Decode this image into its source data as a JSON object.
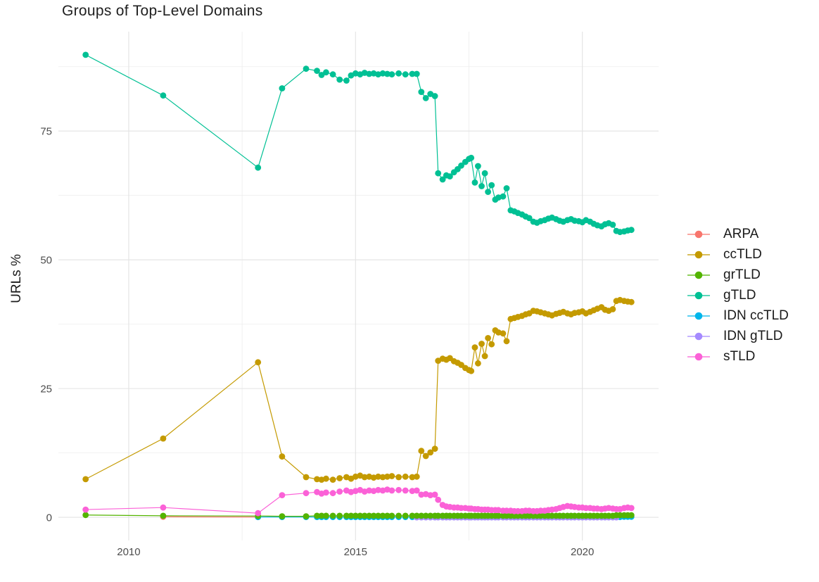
{
  "title": "Groups of Top-Level Domains",
  "chart_data": {
    "type": "line",
    "title": "Groups of Top-Level Domains",
    "xlabel": "",
    "ylabel": "URLs %",
    "grid": true,
    "legend_position": "right",
    "xlim": [
      2008.45,
      2021.68
    ],
    "ylim": [
      -4.5,
      94.3
    ],
    "x_ticks": {
      "major": [
        2010,
        2015,
        2020
      ],
      "minor": [
        2012.5,
        2017.5
      ],
      "labels": [
        "2010",
        "2015",
        "2020"
      ]
    },
    "y_ticks": {
      "major": [
        0,
        25,
        50,
        75
      ],
      "minor": [
        12.5,
        37.5,
        62.5,
        87.5
      ],
      "labels": [
        "0",
        "25",
        "50",
        "75"
      ]
    },
    "x": [
      2009.05,
      2010.76,
      2012.85,
      2013.38,
      2013.91,
      2014.15,
      2014.25,
      2014.35,
      2014.5,
      2014.65,
      2014.8,
      2014.9,
      2015.0,
      2015.1,
      2015.2,
      2015.3,
      2015.4,
      2015.5,
      2015.6,
      2015.7,
      2015.8,
      2015.95,
      2016.1,
      2016.25,
      2016.35,
      2016.45,
      2016.55,
      2016.65,
      2016.75,
      2016.82,
      2016.92,
      2017.0,
      2017.08,
      2017.17,
      2017.25,
      2017.33,
      2017.42,
      2017.5,
      2017.55,
      2017.63,
      2017.7,
      2017.78,
      2017.85,
      2017.92,
      2018.0,
      2018.08,
      2018.15,
      2018.25,
      2018.33,
      2018.42,
      2018.5,
      2018.58,
      2018.67,
      2018.75,
      2018.83,
      2018.92,
      2019.0,
      2019.08,
      2019.17,
      2019.25,
      2019.33,
      2019.42,
      2019.5,
      2019.58,
      2019.67,
      2019.75,
      2019.83,
      2019.92,
      2020.0,
      2020.08,
      2020.17,
      2020.25,
      2020.33,
      2020.42,
      2020.5,
      2020.58,
      2020.67,
      2020.75,
      2020.83,
      2020.92,
      2021.0,
      2021.08
    ],
    "draw_order": [
      "gTLD",
      "ccTLD",
      "ARPA",
      "IDN ccTLD",
      "IDN gTLD",
      "grTLD",
      "sTLD"
    ],
    "series": [
      {
        "name": "ARPA",
        "color": "#F8766D",
        "start_index": 1,
        "values": [
          0.1,
          0.05
        ]
      },
      {
        "name": "ccTLD",
        "color": "#C49A00",
        "start_index": 0,
        "values": [
          7.4,
          15.3,
          30.1,
          11.8,
          7.8,
          7.4,
          7.3,
          7.5,
          7.3,
          7.6,
          7.8,
          7.5,
          7.9,
          8.1,
          7.8,
          7.9,
          7.7,
          7.9,
          7.8,
          7.9,
          8.0,
          7.8,
          7.9,
          7.8,
          7.9,
          12.9,
          11.9,
          12.6,
          13.3,
          30.4,
          30.8,
          30.6,
          30.9,
          30.3,
          30.0,
          29.6,
          29.0,
          28.6,
          28.4,
          33.0,
          29.9,
          33.7,
          31.3,
          34.8,
          33.6,
          36.3,
          35.9,
          35.7,
          34.2,
          38.5,
          38.7,
          38.9,
          39.1,
          39.4,
          39.6,
          40.1,
          40.0,
          39.8,
          39.6,
          39.4,
          39.2,
          39.5,
          39.7,
          39.9,
          39.6,
          39.4,
          39.7,
          39.8,
          40.0,
          39.6,
          39.9,
          40.2,
          40.5,
          40.8,
          40.3,
          40.1,
          40.4,
          42.0,
          42.2,
          42.0,
          41.9,
          41.8
        ]
      },
      {
        "name": "grTLD",
        "color": "#53B400",
        "start_index": 0,
        "values": [
          0.45,
          0.3,
          0.25,
          0.2,
          0.2,
          0.3,
          0.3,
          0.3,
          0.3,
          0.3,
          0.3,
          0.3,
          0.3,
          0.3,
          0.3,
          0.3,
          0.3,
          0.3,
          0.3,
          0.3,
          0.3,
          0.3,
          0.3,
          0.3,
          0.3,
          0.3,
          0.3,
          0.3,
          0.3,
          0.3,
          0.3,
          0.3,
          0.3,
          0.3,
          0.3,
          0.3,
          0.3,
          0.3,
          0.3,
          0.3,
          0.3,
          0.3,
          0.3,
          0.3,
          0.3,
          0.3,
          0.3,
          0.3,
          0.3,
          0.3,
          0.3,
          0.3,
          0.3,
          0.3,
          0.3,
          0.3,
          0.3,
          0.3,
          0.3,
          0.3,
          0.3,
          0.3,
          0.3,
          0.3,
          0.3,
          0.3,
          0.3,
          0.3,
          0.3,
          0.3,
          0.3,
          0.3,
          0.3,
          0.3,
          0.3,
          0.3,
          0.3,
          0.4,
          0.4,
          0.4,
          0.4,
          0.4
        ]
      },
      {
        "name": "gTLD",
        "color": "#00C094",
        "start_index": 0,
        "values": [
          89.8,
          81.9,
          67.9,
          83.3,
          87.1,
          86.7,
          85.9,
          86.4,
          86.0,
          85.0,
          84.8,
          85.8,
          86.2,
          86.0,
          86.3,
          86.1,
          86.2,
          86.0,
          86.2,
          86.1,
          86.0,
          86.2,
          86.0,
          86.1,
          86.1,
          82.6,
          81.4,
          82.2,
          81.8,
          66.8,
          65.6,
          66.4,
          66.2,
          67.0,
          67.6,
          68.3,
          69.0,
          69.6,
          69.8,
          65.0,
          68.2,
          64.3,
          66.8,
          63.2,
          64.5,
          61.7,
          62.1,
          62.3,
          63.9,
          59.6,
          59.4,
          59.1,
          58.8,
          58.4,
          58.1,
          57.4,
          57.2,
          57.5,
          57.7,
          58.0,
          58.2,
          57.9,
          57.6,
          57.4,
          57.7,
          57.9,
          57.6,
          57.5,
          57.3,
          57.7,
          57.4,
          57.0,
          56.7,
          56.5,
          56.9,
          57.1,
          56.8,
          55.6,
          55.4,
          55.5,
          55.7,
          55.8
        ]
      },
      {
        "name": "IDN ccTLD",
        "color": "#00B6EB",
        "start_index": 2,
        "values": [
          0.05,
          0.05,
          0.05,
          0.05,
          0.05,
          0.05,
          0.05,
          0.05,
          0.05,
          0.05,
          0.05,
          0.05,
          0.05,
          0.05,
          0.05,
          0.05,
          0.05,
          0.05,
          0.05,
          0.05,
          0.05,
          0.05,
          0.05,
          0.05,
          0.05,
          0.05,
          0.05,
          0.05,
          0.05,
          0.05,
          0.05,
          0.05,
          0.05,
          0.05,
          0.05,
          0.05,
          0.05,
          0.05,
          0.05,
          0.05,
          0.05,
          0.05,
          0.05,
          0.05,
          0.05,
          0.05,
          0.05,
          0.05,
          0.05,
          0.05,
          0.05,
          0.05,
          0.05,
          0.05,
          0.05,
          0.05,
          0.05,
          0.05,
          0.05,
          0.05,
          0.05,
          0.05,
          0.05,
          0.05,
          0.05,
          0.05,
          0.05,
          0.05,
          0.05,
          0.05,
          0.05,
          0.05,
          0.05,
          0.05,
          0.05,
          0.05,
          0.05,
          0.1,
          0.1,
          0.1
        ]
      },
      {
        "name": "IDN gTLD",
        "color": "#A58AFF",
        "start_index": 24,
        "values": [
          0.0,
          0.0,
          0.0,
          0.0,
          0.0,
          0.0,
          0.0,
          0.0,
          0.0,
          0.0,
          0.0,
          0.0,
          0.0,
          0.0,
          0.0,
          0.0,
          0.0,
          0.0,
          0.0,
          0.0,
          0.0,
          0.0,
          0.0,
          0.0,
          0.0,
          0.0,
          0.0,
          0.0,
          0.0,
          0.0,
          0.0,
          0.0,
          0.0,
          0.0,
          0.0,
          0.0,
          0.0,
          0.0,
          0.0,
          0.0,
          0.0,
          0.0,
          0.0,
          0.0,
          0.0,
          0.0,
          0.0,
          0.0,
          0.0,
          0.0,
          0.0,
          0.0,
          0.0,
          0.0
        ]
      },
      {
        "name": "sTLD",
        "color": "#FB61D7",
        "start_index": 0,
        "values": [
          1.5,
          1.9,
          0.8,
          4.3,
          4.7,
          4.9,
          4.6,
          4.8,
          4.7,
          5.0,
          5.2,
          4.9,
          5.1,
          5.3,
          5.0,
          5.2,
          5.1,
          5.3,
          5.2,
          5.4,
          5.2,
          5.3,
          5.2,
          5.1,
          5.2,
          4.4,
          4.5,
          4.3,
          4.4,
          3.4,
          2.4,
          2.1,
          2.0,
          1.9,
          1.9,
          1.8,
          1.8,
          1.7,
          1.7,
          1.6,
          1.6,
          1.5,
          1.5,
          1.5,
          1.4,
          1.4,
          1.4,
          1.3,
          1.3,
          1.3,
          1.2,
          1.2,
          1.2,
          1.3,
          1.3,
          1.2,
          1.2,
          1.3,
          1.3,
          1.4,
          1.5,
          1.6,
          1.8,
          2.0,
          2.2,
          2.1,
          2.0,
          1.9,
          1.9,
          1.8,
          1.8,
          1.7,
          1.7,
          1.6,
          1.7,
          1.8,
          1.7,
          1.6,
          1.6,
          1.8,
          1.9,
          1.8
        ]
      }
    ]
  },
  "style": {
    "grid_major_color": "#e3e3e3",
    "grid_minor_color": "#ededed",
    "tick_label_color": "#4d4d4d",
    "text_color": "#1a1a1a",
    "background": "#ffffff"
  }
}
